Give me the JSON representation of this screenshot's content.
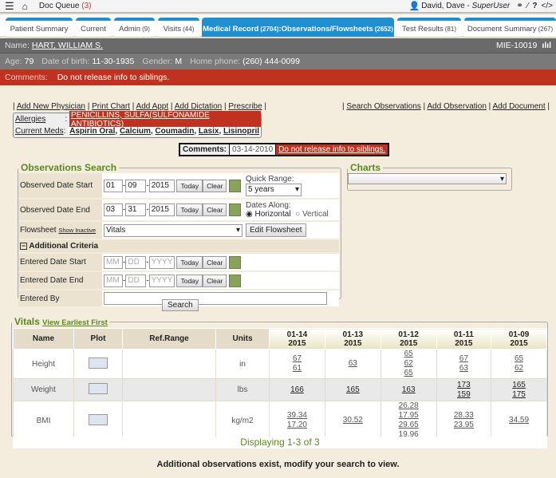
{
  "topbar": {
    "doc_queue": "Doc Queue",
    "doc_queue_count": "(3)",
    "user": "David, Dave",
    "role": "SuperUser",
    "icons": [
      "menu-icon",
      "home-icon",
      "user-icon",
      "link-icon",
      "wand-icon",
      "help-icon",
      "code-icon"
    ]
  },
  "tabs": [
    {
      "label": "Patient Summary",
      "count": ""
    },
    {
      "label": "Current",
      "count": ""
    },
    {
      "label": "Admin",
      "count": "(9)"
    },
    {
      "label": "Visits",
      "count": "(44)"
    },
    {
      "label": "Medical Record",
      "count": "(2704)",
      "sub": ":Observations/Flowsheets",
      "subcount": "(2652)"
    },
    {
      "label": "Test Results",
      "count": "(81)"
    },
    {
      "label": "Document Summary",
      "count": "(267)"
    }
  ],
  "patient": {
    "name_label": "Name:",
    "name": "HART, WILLIAM S.",
    "mrn": "MIE-10019",
    "age_label": "Age:",
    "age": "79",
    "dob_label": "Date of birth:",
    "dob": "11-30-1935",
    "gender_label": "Gender:",
    "gender": "M",
    "phone_label": "Home phone:",
    "phone": "(260) 444-0099",
    "comments_label": "Comments:",
    "comments": "Do not release info to siblings."
  },
  "links_left": [
    "Add New Physician",
    "Print Chart",
    "Add Appt",
    "Add Dictation",
    "Prescribe"
  ],
  "links_right": [
    "Search Observations",
    "Add Observation",
    "Add Document"
  ],
  "allergies": {
    "label": "Allergies",
    "value": "PENICILLINS, SULFA(SULFONAMIDE ANTIBIOTICS)",
    "meds_label": "Current Meds",
    "meds": [
      "Aspirin Oral",
      "Calcium",
      "Coumadin",
      "Lasix",
      "Lisinopril"
    ]
  },
  "comment_box": {
    "label": "Comments:",
    "date": "03-14-2010",
    "text": "Do not release info to siblings."
  },
  "search": {
    "title": "Observations Search",
    "obs_start_label": "Observed Date Start",
    "obs_start": [
      "01",
      "09",
      "2015"
    ],
    "obs_end_label": "Observed Date End",
    "obs_end": [
      "03",
      "31",
      "2015"
    ],
    "today": "Today",
    "clear": "Clear",
    "quick_range_label": "Quick Range:",
    "quick_range": "5 years",
    "dates_along_label": "Dates Along:",
    "horizontal": "Horizontal",
    "vertical": "Vertical",
    "dates_along_selected": "Horizontal",
    "flowsheet_label": "Flowsheet",
    "show_inactive": "Show Inactive",
    "flowsheet": "Vitals",
    "edit_flowsheet": "Edit Flowsheet",
    "additional": "Additional Criteria",
    "ent_start_label": "Entered Date Start",
    "ent_end_label": "Entered Date End",
    "ph": [
      "MM",
      "DD",
      "YYYY"
    ],
    "entered_by_label": "Entered By",
    "search_button": "Search"
  },
  "charts": {
    "title": "Charts",
    "select": ""
  },
  "vitals": {
    "title": "Vitals",
    "view_earliest": "View Earliest First",
    "headers": [
      "Name",
      "Plot",
      "Ref.Range",
      "Units"
    ],
    "dates": [
      [
        "01-14",
        "2015"
      ],
      [
        "01-13",
        "2015"
      ],
      [
        "01-12",
        "2015"
      ],
      [
        "01-11",
        "2015"
      ],
      [
        "01-09",
        "2015"
      ]
    ],
    "rows": [
      {
        "name": "Height",
        "units": "in",
        "values": [
          [
            "67",
            "61"
          ],
          [
            "63"
          ],
          [
            "65",
            "62",
            "65"
          ],
          [
            "67",
            "63"
          ],
          [
            "65",
            "62"
          ]
        ]
      },
      {
        "name": "Weight",
        "units": "lbs",
        "values": [
          [
            "166"
          ],
          [
            "165"
          ],
          [
            "163"
          ],
          [
            "173",
            "159"
          ],
          [
            "165",
            "175"
          ]
        ]
      },
      {
        "name": "BMI",
        "units": "kg/m2",
        "values": [
          [
            "39.34",
            "17.20"
          ],
          [
            "30.52"
          ],
          [
            "26.28",
            "17.95",
            "29.65",
            "19.96"
          ],
          [
            "28.33",
            "23.95"
          ],
          [
            "34.59"
          ]
        ]
      }
    ],
    "displaying": "Displaying 1-3 of 3",
    "footer": "Additional observations exist, modify your search to view."
  }
}
